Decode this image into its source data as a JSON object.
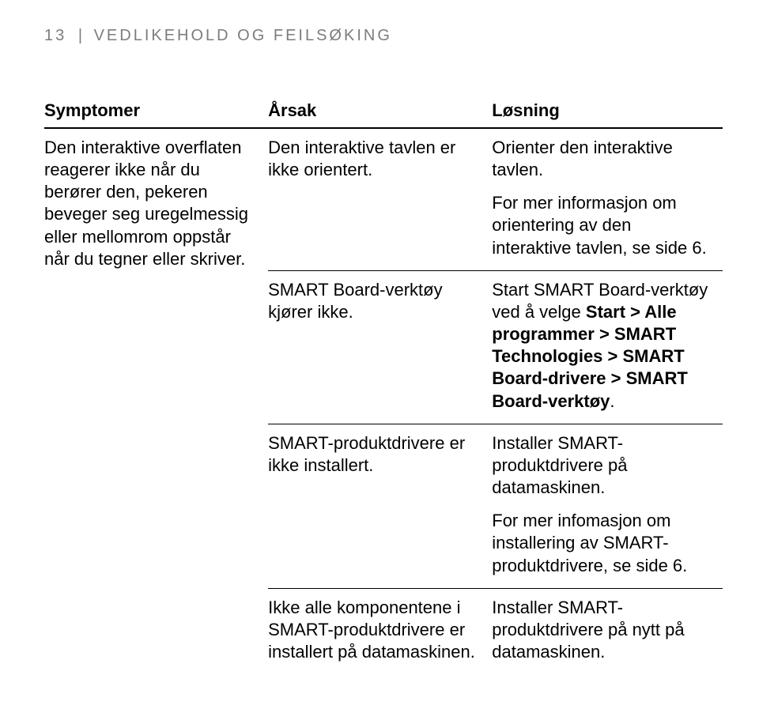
{
  "header": {
    "pagenum": "13",
    "separator": "|",
    "section": "VEDLIKEHOLD OG FEILSØKING"
  },
  "table": {
    "head": {
      "c1": "Symptomer",
      "c2": "Årsak",
      "c3": "Løsning"
    },
    "symptom": "Den interaktive overflaten reagerer ikke når du berører den, pekeren beveger seg uregelmessig eller mellomrom oppstår når du tegner eller skriver.",
    "rows": [
      {
        "cause": "Den interaktive tavlen er ikke orientert.",
        "solution_p1": "Orienter den interaktive tavlen.",
        "solution_p2": "For mer informasjon om orientering av den interaktive tavlen, se side 6."
      },
      {
        "cause": "SMART Board-verktøy kjører ikke.",
        "solution_pre": "Start SMART Board-verktøy ved å velge ",
        "solution_bold": "Start > Alle programmer > SMART Technologies > SMART Board-drivere > SMART Board-verktøy",
        "solution_post": "."
      },
      {
        "cause": "SMART-produktdrivere er ikke installert.",
        "solution_p1": "Installer SMART-produktdrivere på datamaskinen.",
        "solution_p2": "For mer infomasjon om installering av SMART-produktdrivere, se side 6."
      },
      {
        "cause": "Ikke alle komponentene i SMART-produktdrivere er installert på datamaskinen.",
        "solution_p1": "Installer SMART-produktdrivere på nytt på datamaskinen."
      }
    ]
  }
}
